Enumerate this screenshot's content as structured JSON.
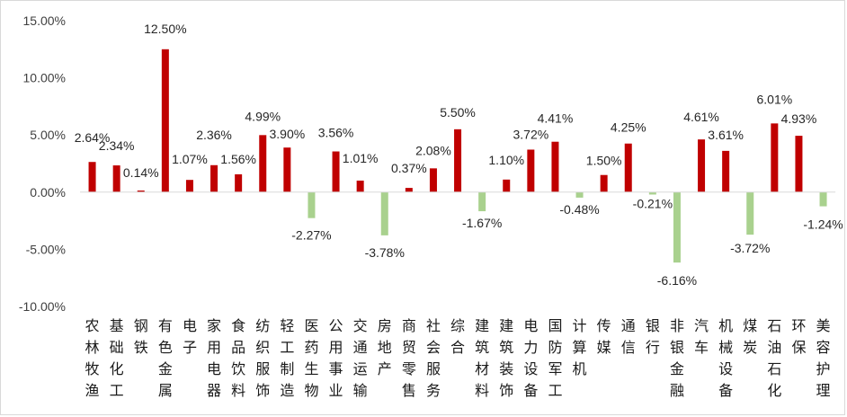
{
  "chart_data": {
    "type": "bar",
    "title": "",
    "xlabel": "",
    "ylabel": "",
    "ylim": [
      -10,
      15
    ],
    "yticks": [
      15,
      10,
      5,
      0,
      -5,
      -10
    ],
    "ytick_labels": [
      "15.00%",
      "10.00%",
      "5.00%",
      "0.00%",
      "-5.00%",
      "-10.00%"
    ],
    "grid": false,
    "legend": "none",
    "colors": {
      "positive": "#c00000",
      "negative": "#a9d18e"
    },
    "categories": [
      "农林牧渔",
      "基础化工",
      "钢铁",
      "有色金属",
      "电子",
      "家用电器",
      "食品饮料",
      "纺织服饰",
      "轻工制造",
      "医药生物",
      "公用事业",
      "交通运输",
      "房地产",
      "商贸零售",
      "社会服务",
      "综合",
      "建筑材料",
      "建筑装饰",
      "电力设备",
      "国防军工",
      "计算机",
      "传媒",
      "通信",
      "银行",
      "非银金融",
      "汽车",
      "机械设备",
      "煤炭",
      "石油石化",
      "环保",
      "美容护理"
    ],
    "values": [
      2.64,
      2.34,
      0.14,
      12.5,
      1.07,
      2.36,
      1.56,
      4.99,
      3.9,
      -2.27,
      3.56,
      1.01,
      -3.78,
      0.37,
      2.08,
      5.5,
      -1.67,
      1.1,
      3.72,
      4.41,
      -0.48,
      1.5,
      4.25,
      -0.21,
      -6.16,
      4.61,
      3.61,
      -3.72,
      6.01,
      4.93,
      -1.24
    ],
    "labels": [
      "2.64%",
      "2.34%",
      "0.14%",
      "12.50%",
      "1.07%",
      "2.36%",
      "1.56%",
      "4.99%",
      "3.90%",
      "-2.27%",
      "3.56%",
      "1.01%",
      "-3.78%",
      "0.37%",
      "2.08%",
      "5.50%",
      "-1.67%",
      "1.10%",
      "3.72%",
      "4.41%",
      "-0.48%",
      "1.50%",
      "4.25%",
      "-0.21%",
      "-6.16%",
      "4.61%",
      "3.61%",
      "-3.72%",
      "6.01%",
      "4.93%",
      "-1.24%"
    ]
  }
}
